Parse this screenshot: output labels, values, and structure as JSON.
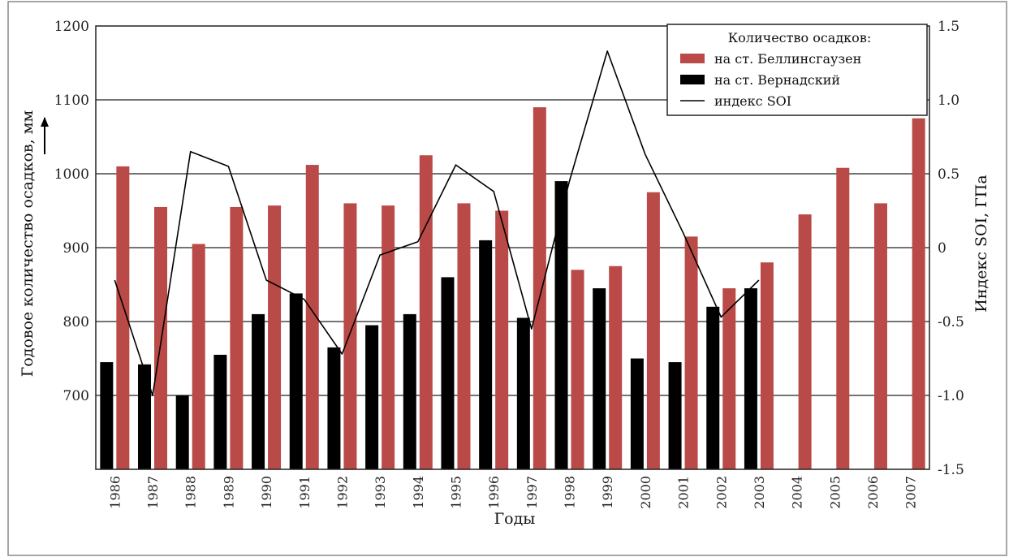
{
  "header_text": "",
  "chart_data": {
    "type": "bar",
    "xlabel": "Годы",
    "ylabel": "Годовое количество осадков, мм",
    "y2label": "Индекс SOI, ГПа",
    "ylim": [
      600,
      1200
    ],
    "y2lim": [
      -1.5,
      1.5
    ],
    "yticks": [
      "1200",
      "1100",
      "1000",
      "900",
      "800",
      "700"
    ],
    "y2ticks": [
      "1.5",
      "1.0",
      "0.5",
      "0",
      "-0.5",
      "-1.0",
      "-1.5"
    ],
    "grid": "horizontal",
    "legend": {
      "title": "Количество осадков:",
      "position": "top-right",
      "items": [
        {
          "label": "на ст. Беллинсгаузен",
          "kind": "bar",
          "color": "#b94a48"
        },
        {
          "label": "на ст. Вернадский",
          "kind": "bar",
          "color": "#000000"
        },
        {
          "label": "индекс SOI",
          "kind": "line",
          "color": "#000000"
        }
      ]
    },
    "categories": [
      "1986",
      "1987",
      "1988",
      "1989",
      "1990",
      "1991",
      "1992",
      "1993",
      "1994",
      "1995",
      "1996",
      "1997",
      "1998",
      "1999",
      "2000",
      "2001",
      "2002",
      "2003",
      "2004",
      "2005",
      "2006",
      "2007"
    ],
    "series": [
      {
        "name": "на ст. Вернадский",
        "kind": "bar",
        "axis": "left",
        "color": "#000000",
        "values": [
          745,
          742,
          700,
          755,
          810,
          838,
          765,
          795,
          810,
          860,
          910,
          805,
          990,
          845,
          750,
          745,
          820,
          845,
          null,
          null,
          null,
          null
        ]
      },
      {
        "name": "на ст. Беллинсгаузен",
        "kind": "bar",
        "axis": "left",
        "color": "#b94a48",
        "values": [
          1010,
          955,
          905,
          955,
          957,
          1012,
          960,
          957,
          1025,
          960,
          950,
          1090,
          870,
          875,
          975,
          915,
          845,
          880,
          945,
          1008,
          960,
          1075
        ]
      },
      {
        "name": "индекс SOI",
        "kind": "line",
        "axis": "right",
        "color": "#000000",
        "values": [
          -0.22,
          -1.0,
          0.65,
          0.55,
          -0.22,
          -0.35,
          -0.72,
          -0.05,
          0.04,
          0.56,
          0.38,
          -0.55,
          0.45,
          1.33,
          0.63,
          0.1,
          -0.47,
          -0.22,
          null,
          null,
          null,
          null
        ]
      }
    ]
  }
}
